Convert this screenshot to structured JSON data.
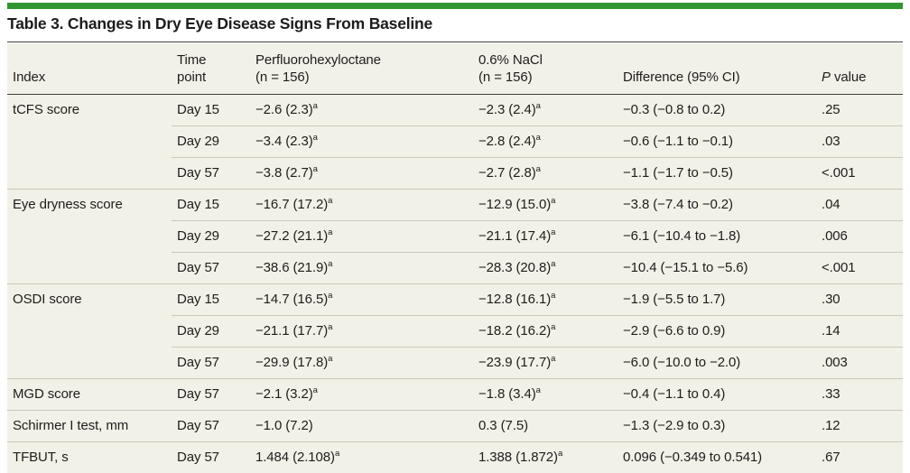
{
  "title": "Table 3. Changes in Dry Eye Disease Signs From Baseline",
  "colors": {
    "accent_green": "#2f9632",
    "table_background": "#f2f1e8",
    "dark_rule": "#42423c",
    "row_divider": "#cbc9bc",
    "text": "#1e1d1b"
  },
  "header": {
    "index": "Index",
    "time_line1": "Time",
    "time_line2": "point",
    "pf_line1": "Perfluorohexyloctane",
    "pf_line2": "(n = 156)",
    "nacl_line1": "0.6% NaCl",
    "nacl_line2": "(n = 156)",
    "difference": "Difference (95% CI)",
    "pvalue_italic": "P",
    "pvalue_rest": " value"
  },
  "rows": [
    {
      "index": "tCFS score",
      "time": "Day 15",
      "pf": "−2.6 (2.3)",
      "pf_sup": "a",
      "nacl": "−2.3 (2.4)",
      "nacl_sup": "a",
      "diff": "−0.3 (−0.8 to 0.2)",
      "p": ".25"
    },
    {
      "index": "",
      "time": "Day 29",
      "pf": "−3.4 (2.3)",
      "pf_sup": "a",
      "nacl": "−2.8 (2.4)",
      "nacl_sup": "a",
      "diff": "−0.6 (−1.1 to −0.1)",
      "p": ".03"
    },
    {
      "index": "",
      "time": "Day 57",
      "pf": "−3.8 (2.7)",
      "pf_sup": "a",
      "nacl": "−2.7 (2.8)",
      "nacl_sup": "a",
      "diff": "−1.1 (−1.7 to −0.5)",
      "p": "<.001"
    },
    {
      "index": "Eye dryness score",
      "time": "Day 15",
      "pf": "−16.7 (17.2)",
      "pf_sup": "a",
      "nacl": "−12.9 (15.0)",
      "nacl_sup": "a",
      "diff": "−3.8 (−7.4 to −0.2)",
      "p": ".04"
    },
    {
      "index": "",
      "time": "Day 29",
      "pf": "−27.2 (21.1)",
      "pf_sup": "a",
      "nacl": "−21.1 (17.4)",
      "nacl_sup": "a",
      "diff": "−6.1 (−10.4 to −1.8)",
      "p": ".006"
    },
    {
      "index": "",
      "time": "Day 57",
      "pf": "−38.6 (21.9)",
      "pf_sup": "a",
      "nacl": "−28.3 (20.8)",
      "nacl_sup": "a",
      "diff": "−10.4 (−15.1 to −5.6)",
      "p": "<.001"
    },
    {
      "index": "OSDI score",
      "time": "Day 15",
      "pf": "−14.7 (16.5)",
      "pf_sup": "a",
      "nacl": "−12.8 (16.1)",
      "nacl_sup": "a",
      "diff": "−1.9 (−5.5 to 1.7)",
      "p": ".30"
    },
    {
      "index": "",
      "time": "Day 29",
      "pf": "−21.1 (17.7)",
      "pf_sup": "a",
      "nacl": "−18.2 (16.2)",
      "nacl_sup": "a",
      "diff": "−2.9 (−6.6 to 0.9)",
      "p": ".14"
    },
    {
      "index": "",
      "time": "Day 57",
      "pf": "−29.9 (17.8)",
      "pf_sup": "a",
      "nacl": "−23.9 (17.7)",
      "nacl_sup": "a",
      "diff": "−6.0 (−10.0 to −2.0)",
      "p": ".003"
    },
    {
      "index": "MGD score",
      "time": "Day 57",
      "pf": "−2.1 (3.2)",
      "pf_sup": "a",
      "nacl": "−1.8 (3.4)",
      "nacl_sup": "a",
      "diff": "−0.4 (−1.1 to 0.4)",
      "p": ".33"
    },
    {
      "index": "Schirmer I test, mm",
      "time": "Day 57",
      "pf": "−1.0 (7.2)",
      "nacl": "0.3 (7.5)",
      "diff": "−1.3 (−2.9 to 0.3)",
      "p": ".12"
    },
    {
      "index": "TFBUT, s",
      "time": "Day 57",
      "pf": "1.484 (2.108)",
      "pf_sup": "a",
      "nacl": "1.388 (1.872)",
      "nacl_sup": "a",
      "diff": "0.096 (−0.349 to 0.541)",
      "p": ".67"
    }
  ]
}
